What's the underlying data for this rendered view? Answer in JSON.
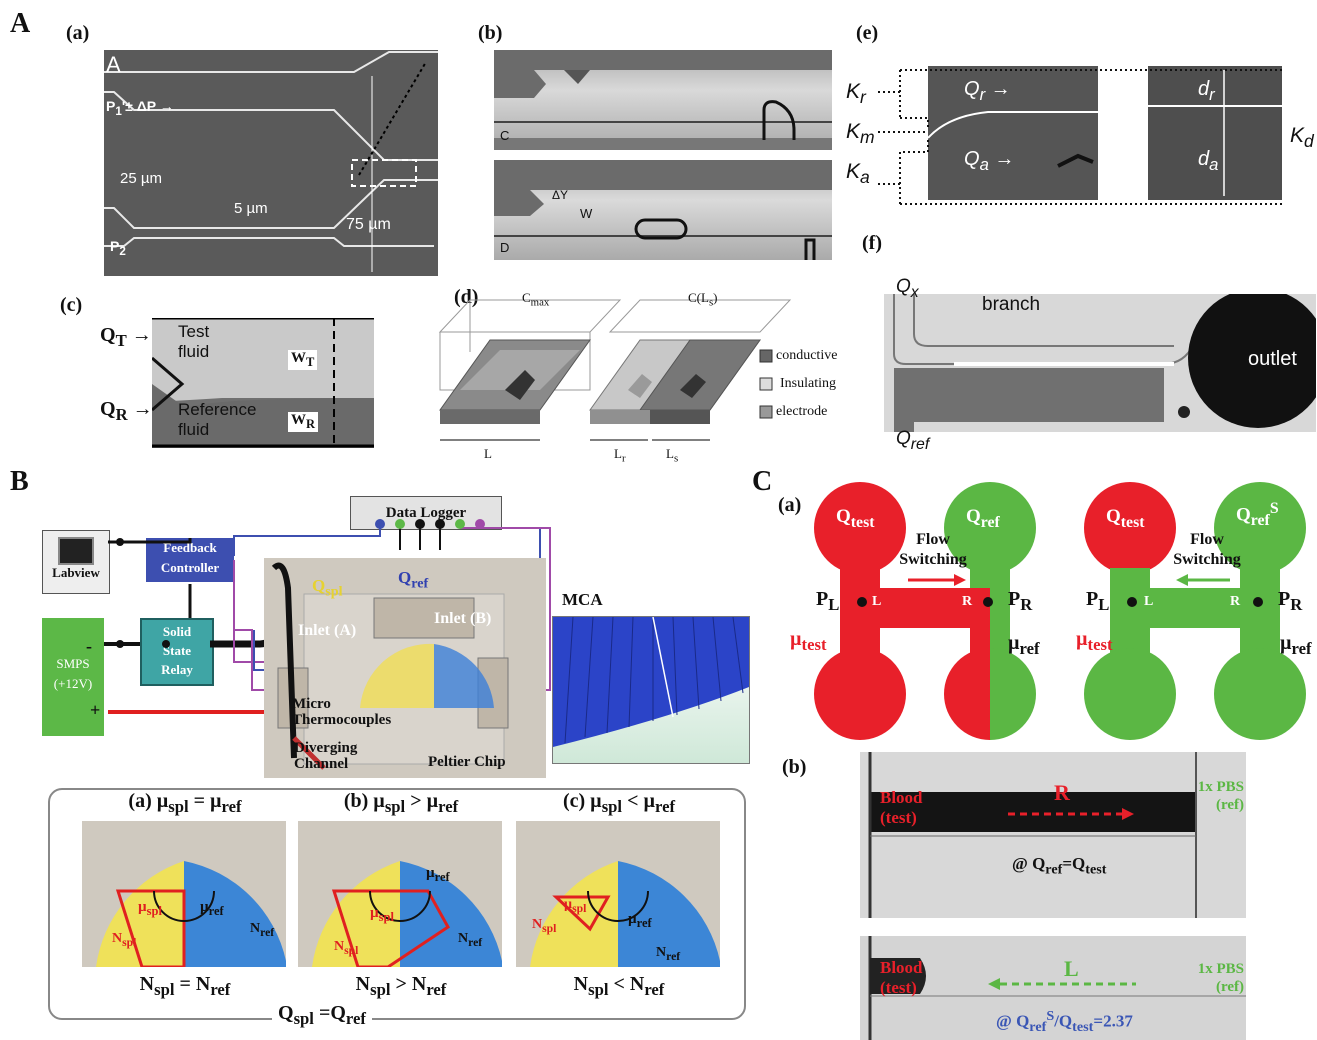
{
  "figure_labels": {
    "A": "A",
    "B": "B",
    "C": "C"
  },
  "panelA": {
    "a": {
      "label": "(a)",
      "corner": "A",
      "p1": "P",
      "p1_sub": "1",
      "p1_rest": "'± ΔP",
      "p2": "P",
      "p2_sub": "2",
      "w25": "25 µm",
      "w5": "5 µm",
      "w75": "75 µm"
    },
    "b": {
      "label": "(b)",
      "c": "C",
      "d": "D",
      "dy": "ΔY",
      "w": "W"
    },
    "c": {
      "label": "(c)",
      "qt": "Q",
      "qt_sub": "T",
      "qr": "Q",
      "qr_sub": "R",
      "test": "Test",
      "fluid1": "fluid",
      "ref": "Reference",
      "fluid2": "fluid",
      "wt": "W",
      "wt_sub": "T",
      "wr": "W",
      "wr_sub": "R"
    },
    "d": {
      "label": "(d)",
      "cmax": "C",
      "cmax_sub": "max",
      "cls": "C(L",
      "cls_sub": "s",
      "cls_end": ")",
      "conductive": "conductive",
      "insulating": "Insulating",
      "electrode": "electrode",
      "L": "L",
      "Lr": "L",
      "Lr_sub": "r",
      "Ls": "L",
      "Ls_sub": "s"
    },
    "e": {
      "label": "(e)",
      "kr": "K",
      "kr_sub": "r",
      "km": "K",
      "km_sub": "m",
      "ka": "K",
      "ka_sub": "a",
      "qr": "Q",
      "qr_sub": "r",
      "qa": "Q",
      "qa_sub": "a",
      "dr": "d",
      "dr_sub": "r",
      "da": "d",
      "da_sub": "a",
      "kd": "K",
      "kd_sub": "d"
    },
    "f": {
      "label": "(f)",
      "qx": "Q",
      "qx_sub": "x",
      "branch": "branch",
      "outlet": "outlet",
      "qref": "Q",
      "qref_sub": "ref"
    }
  },
  "panelB": {
    "data_logger": "Data Logger",
    "labview": "Labview",
    "feedback": "Feedback",
    "controller": "Controller",
    "solid": "Solid",
    "state": "State",
    "relay": "Relay",
    "smps": "SMPS",
    "smps_v": "(+12V)",
    "minus": "-",
    "plus": "+",
    "qspl": "Q",
    "qspl_sub": "spl",
    "qref": "Q",
    "qref_sub": "ref",
    "inlet_a": "Inlet (A)",
    "inlet_b": "Inlet (B)",
    "mca": "MCA",
    "micro": "Micro",
    "thermo": "Thermocouples",
    "diverging": "Diverging",
    "channel": "Channel",
    "peltier": "Peltier Chip",
    "cases": [
      {
        "head": "(a) µ",
        "head_sub": "spl",
        "head_rel": " = µ",
        "head_sub2": "ref",
        "mu_spl": "µ",
        "mu_spl_sub": "spl",
        "mu_ref": "µ",
        "mu_ref_sub": "ref",
        "n_spl": "N",
        "n_spl_sub": "spl",
        "n_ref": "N",
        "n_ref_sub": "ref",
        "foot": "N",
        "foot_sub": "spl",
        "foot_rel": " = N",
        "foot_sub2": "ref"
      },
      {
        "head": "(b) µ",
        "head_sub": "spl",
        "head_rel": " > µ",
        "head_sub2": "ref",
        "mu_spl": "µ",
        "mu_spl_sub": "spl",
        "mu_ref": "µ",
        "mu_ref_sub": "ref",
        "n_spl": "N",
        "n_spl_sub": "spl",
        "n_ref": "N",
        "n_ref_sub": "ref",
        "foot": "N",
        "foot_sub": "spl",
        "foot_rel": " > N",
        "foot_sub2": "ref"
      },
      {
        "head": "(c) µ",
        "head_sub": "spl",
        "head_rel": " < µ",
        "head_sub2": "ref",
        "mu_spl": "µ",
        "mu_spl_sub": "spl",
        "mu_ref": "µ",
        "mu_ref_sub": "ref",
        "n_spl": "N",
        "n_spl_sub": "spl",
        "n_ref": "N",
        "n_ref_sub": "ref",
        "foot": "N",
        "foot_sub": "spl",
        "foot_rel": " < N",
        "foot_sub2": "ref"
      }
    ],
    "bottom": "Q",
    "bottom_sub": "spl",
    "bottom_rel": " =Q",
    "bottom_sub2": "ref"
  },
  "panelC": {
    "a": {
      "label": "(a)",
      "qtest": "Q",
      "qtest_sub": "test",
      "qref": "Q",
      "qref_sub": "ref",
      "qrefs": "Q",
      "qrefs_sub": "ref",
      "qrefs_sup": "S",
      "flow": "Flow",
      "switching": "Switching",
      "pl": "P",
      "pl_sub": "L",
      "pr": "P",
      "pr_sub": "R",
      "L": "L",
      "R": "R",
      "mu_test": "µ",
      "mu_test_sub": "test",
      "mu_ref": "µ",
      "mu_ref_sub": "ref"
    },
    "b": {
      "label": "(b)",
      "blood": "Blood",
      "test": "(test)",
      "pbs": "1x PBS",
      "ref": "(ref)",
      "R": "R",
      "L": "L",
      "eq1a": "@ Q",
      "eq1_sub1": "ref",
      "eq1b": "=Q",
      "eq1_sub2": "test",
      "eq2a": "@ Q",
      "eq2_sub1": "ref",
      "eq2_sup": "S",
      "eq2b": "/Q",
      "eq2_sub2": "test",
      "eq2c": "=2.37"
    }
  },
  "colors": {
    "red": "#e8202a",
    "green": "#5bb744",
    "blue": "#3a56b5",
    "yellow": "#f2dc3c",
    "navy": "#1e2b9c"
  }
}
